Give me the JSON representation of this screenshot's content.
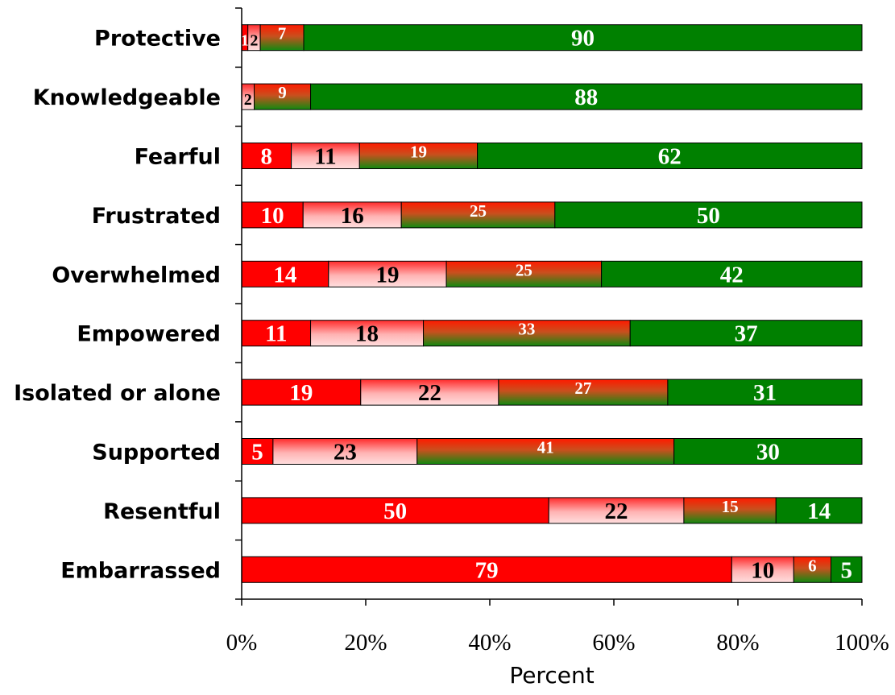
{
  "chart_data": {
    "type": "bar",
    "orientation": "horizontal",
    "stacked": true,
    "normalized_percent": true,
    "xlabel": "Percent",
    "xlim": [
      0,
      100
    ],
    "xticks": [
      0,
      20,
      40,
      60,
      80,
      100
    ],
    "xtick_labels": [
      "0%",
      "20%",
      "40%",
      "60%",
      "80%",
      "100%"
    ],
    "grid": false,
    "legend": "none",
    "categories": [
      "Protective",
      "Knowledgeable",
      "Fearful",
      "Frustrated",
      "Overwhelmed",
      "Empowered",
      "Isolated or alone",
      "Supported",
      "Resentful",
      "Embarrassed"
    ],
    "series": [
      {
        "color": "#ff0000",
        "style": "solid",
        "text_color": "#ffffff",
        "values": [
          1,
          0,
          8,
          10,
          14,
          11,
          19,
          5,
          50,
          79
        ]
      },
      {
        "color": "#ffb3b3",
        "style": "gradient-pink",
        "text_color": "#000000",
        "values": [
          2,
          2,
          11,
          16,
          19,
          18,
          22,
          23,
          22,
          10
        ]
      },
      {
        "color": "#c8501e",
        "style": "gradient-red-green",
        "text_color": "#ffffff",
        "values": [
          7,
          9,
          19,
          25,
          25,
          33,
          27,
          41,
          15,
          6
        ]
      },
      {
        "color": "#008000",
        "style": "solid",
        "text_color": "#ffffff",
        "values": [
          90,
          88,
          62,
          50,
          42,
          37,
          31,
          30,
          14,
          5
        ]
      }
    ],
    "data_labels": [
      [
        "1",
        "2",
        "7",
        "90"
      ],
      [
        "",
        "2",
        "9",
        "88"
      ],
      [
        "8",
        "11",
        "19",
        "62"
      ],
      [
        "10",
        "16",
        "25",
        "50"
      ],
      [
        "14",
        "19",
        "25",
        "42"
      ],
      [
        "11",
        "18",
        "33",
        "37"
      ],
      [
        "19",
        "22",
        "27",
        "31"
      ],
      [
        "5",
        "23",
        "41",
        "30"
      ],
      [
        "50",
        "22",
        "15",
        "14"
      ],
      [
        "79",
        "10",
        "6",
        "5"
      ]
    ]
  }
}
